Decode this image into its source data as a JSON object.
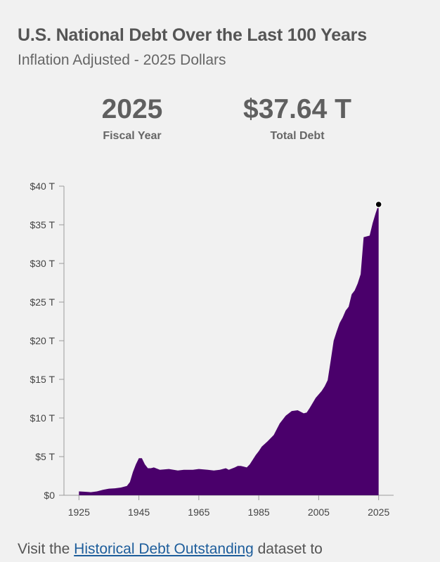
{
  "header": {
    "title": "U.S. National Debt Over the Last 100 Years",
    "subtitle": "Inflation Adjusted - 2025 Dollars"
  },
  "stats": {
    "year_value": "2025",
    "year_label": "Fiscal Year",
    "debt_value": "$37.64 T",
    "debt_label": "Total Debt"
  },
  "footer": {
    "prefix": "Visit the ",
    "link_text": "Historical Debt Outstanding",
    "suffix": " dataset to"
  },
  "chart_data": {
    "type": "area",
    "color": "#4a006b",
    "highlight_color": "#000000",
    "xlim": [
      1920,
      2030
    ],
    "ylim": [
      0,
      40
    ],
    "y_unit": "T",
    "x_ticks": [
      1925,
      1945,
      1965,
      1985,
      2005,
      2025
    ],
    "y_ticks": [
      0,
      5,
      10,
      15,
      20,
      25,
      30,
      35,
      40
    ],
    "y_tick_labels": [
      "$0",
      "$5 T",
      "$10 T",
      "$15 T",
      "$20 T",
      "$25 T",
      "$30 T",
      "$35 T",
      "$40 T"
    ],
    "highlight_point": {
      "x": 2025,
      "y": 37.64
    },
    "series": [
      {
        "x": [
          1925,
          1927,
          1929,
          1931,
          1933,
          1935,
          1937,
          1939,
          1941,
          1942,
          1943,
          1944,
          1945,
          1946,
          1947,
          1948,
          1949,
          1950,
          1952,
          1955,
          1958,
          1960,
          1963,
          1965,
          1968,
          1970,
          1972,
          1974,
          1975,
          1977,
          1978,
          1979,
          1980,
          1981,
          1982,
          1983,
          1984,
          1985,
          1986,
          1988,
          1990,
          1992,
          1994,
          1996,
          1998,
          2000,
          2001,
          2002,
          2004,
          2006,
          2007,
          2008,
          2009,
          2010,
          2011,
          2012,
          2013,
          2014,
          2015,
          2016,
          2017,
          2018,
          2019,
          2020,
          2021,
          2022,
          2023,
          2024,
          2025
        ],
        "y": [
          0.5,
          0.45,
          0.4,
          0.5,
          0.7,
          0.85,
          0.9,
          1.0,
          1.2,
          1.7,
          3.0,
          4.0,
          4.8,
          4.8,
          4.0,
          3.5,
          3.5,
          3.6,
          3.3,
          3.4,
          3.2,
          3.3,
          3.3,
          3.4,
          3.3,
          3.2,
          3.3,
          3.5,
          3.3,
          3.6,
          3.8,
          3.8,
          3.7,
          3.6,
          4.0,
          4.6,
          5.2,
          5.7,
          6.3,
          7.0,
          7.8,
          9.3,
          10.3,
          10.9,
          11.0,
          10.6,
          10.7,
          11.3,
          12.6,
          13.5,
          14.1,
          14.9,
          17.4,
          20.0,
          21.2,
          22.3,
          23.0,
          23.9,
          24.4,
          26.0,
          26.5,
          27.4,
          28.6,
          33.4,
          33.5,
          33.6,
          35.2,
          36.5,
          37.64
        ]
      }
    ]
  }
}
